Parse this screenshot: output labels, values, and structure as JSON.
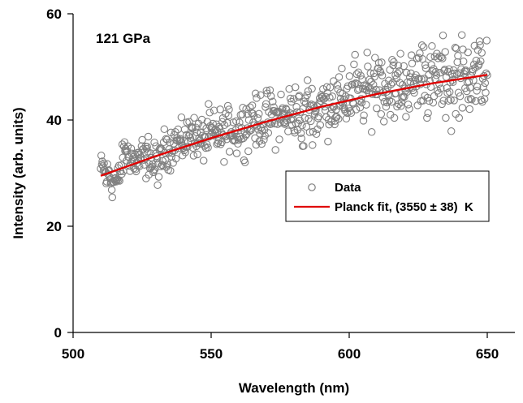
{
  "chart_data": {
    "type": "scatter",
    "annotation": "121 GPa",
    "xlabel": "Wavelength (nm)",
    "ylabel": "Intensity (arb. units)",
    "xlim": [
      500,
      660
    ],
    "ylim": [
      0,
      60
    ],
    "xticks": [
      500,
      550,
      600,
      650
    ],
    "yticks": [
      0,
      20,
      40,
      60
    ],
    "grid": false,
    "legend_position": "center-right",
    "series": [
      {
        "name": "Data",
        "kind": "scatter",
        "marker": "open-circle",
        "color": "#808080",
        "x_range": [
          510,
          650
        ],
        "count": 700,
        "points": [
          [
            510,
            31.6
          ],
          [
            511,
            32.8
          ],
          [
            512,
            28.4
          ],
          [
            513,
            30.1
          ],
          [
            514,
            26.3
          ],
          [
            515,
            27.5
          ],
          [
            516,
            25.2
          ],
          [
            517,
            29.8
          ],
          [
            518,
            33.1
          ],
          [
            519,
            39.2
          ],
          [
            520,
            34.2
          ],
          [
            521,
            36.0
          ],
          [
            522,
            31.5
          ],
          [
            523,
            33.0
          ],
          [
            524,
            32.5
          ],
          [
            525,
            35.1
          ],
          [
            526,
            30.4
          ],
          [
            527,
            34.8
          ],
          [
            528,
            33.2
          ],
          [
            529,
            29.0
          ],
          [
            530,
            32.5
          ],
          [
            531,
            28.2
          ],
          [
            532,
            31.1
          ],
          [
            533,
            34.9
          ],
          [
            534,
            36.3
          ],
          [
            535,
            35.2
          ],
          [
            536,
            37.1
          ],
          [
            537,
            36.4
          ],
          [
            538,
            38.2
          ],
          [
            539,
            35.0
          ],
          [
            540,
            37.5
          ],
          [
            541,
            36.1
          ],
          [
            542,
            39.2
          ],
          [
            543,
            43.5
          ],
          [
            544,
            36.5
          ],
          [
            545,
            38.4
          ],
          [
            546,
            35.3
          ],
          [
            547,
            37.0
          ],
          [
            548,
            36.2
          ],
          [
            549,
            39.5
          ],
          [
            550,
            36.9
          ],
          [
            551,
            38.0
          ],
          [
            552,
            37.5
          ],
          [
            553,
            39.1
          ],
          [
            554,
            36.0
          ],
          [
            555,
            38.3
          ],
          [
            556,
            37.5
          ],
          [
            557,
            40.5
          ],
          [
            558,
            39.4
          ],
          [
            559,
            36.5
          ],
          [
            560,
            38.7
          ],
          [
            561,
            40.1
          ],
          [
            562,
            37.8
          ],
          [
            563,
            41.2
          ],
          [
            564,
            39.0
          ],
          [
            565,
            44.5
          ],
          [
            566,
            40.2
          ],
          [
            567,
            37.5
          ],
          [
            568,
            42.5
          ],
          [
            569,
            39.0
          ],
          [
            570,
            41.5
          ],
          [
            571,
            40.2
          ],
          [
            572,
            43.5
          ],
          [
            573,
            40.3
          ],
          [
            574,
            39.1
          ],
          [
            575,
            42.0
          ],
          [
            576,
            40.8
          ],
          [
            577,
            38.5
          ],
          [
            578,
            43.2
          ],
          [
            579,
            41.0
          ],
          [
            580,
            44.5
          ],
          [
            581,
            41.5
          ],
          [
            582,
            39.5
          ],
          [
            583,
            31.5
          ],
          [
            584,
            42.8
          ],
          [
            585,
            44.0
          ],
          [
            586,
            40.5
          ],
          [
            587,
            43.2
          ],
          [
            588,
            38.5
          ],
          [
            589,
            42.0
          ],
          [
            590,
            45.5
          ],
          [
            591,
            43.0
          ],
          [
            592,
            41.5
          ],
          [
            593,
            44.8
          ],
          [
            594,
            46.5
          ],
          [
            595,
            42.5
          ],
          [
            596,
            44.0
          ],
          [
            597,
            41.2
          ],
          [
            598,
            45.5
          ],
          [
            599,
            43.5
          ],
          [
            600,
            47.0
          ],
          [
            601,
            43.8
          ],
          [
            602,
            50.5
          ],
          [
            603,
            45.0
          ],
          [
            604,
            42.5
          ],
          [
            605,
            46.5
          ],
          [
            606,
            44.2
          ],
          [
            607,
            48.0
          ],
          [
            608,
            45.5
          ],
          [
            609,
            52.5
          ],
          [
            610,
            46.8
          ],
          [
            611,
            56.5
          ],
          [
            612,
            45.0
          ],
          [
            613,
            48.2
          ],
          [
            614,
            44.5
          ],
          [
            615,
            50.0
          ],
          [
            616,
            46.5
          ],
          [
            617,
            43.0
          ],
          [
            618,
            49.5
          ],
          [
            619,
            47.0
          ],
          [
            620,
            45.0
          ],
          [
            621,
            51.0
          ],
          [
            622,
            44.0
          ],
          [
            623,
            48.5
          ],
          [
            624,
            46.0
          ],
          [
            625,
            53.0
          ],
          [
            626,
            47.5
          ],
          [
            627,
            57.0
          ],
          [
            628,
            45.5
          ],
          [
            629,
            50.0
          ],
          [
            630,
            48.0
          ],
          [
            631,
            44.5
          ],
          [
            632,
            52.0
          ],
          [
            633,
            47.0
          ],
          [
            634,
            49.5
          ],
          [
            635,
            46.0
          ],
          [
            636,
            50.5
          ],
          [
            637,
            40.5
          ],
          [
            638,
            48.5
          ],
          [
            639,
            53.5
          ],
          [
            640,
            46.0
          ],
          [
            641,
            50.0
          ],
          [
            642,
            44.0
          ],
          [
            643,
            51.5
          ],
          [
            644,
            47.5
          ],
          [
            645,
            55.0
          ],
          [
            646,
            45.0
          ],
          [
            647,
            49.0
          ],
          [
            648,
            52.0
          ],
          [
            649,
            46.5
          ],
          [
            650,
            50.5
          ]
        ]
      },
      {
        "name": "Planck fit, (3550 ± 38)  K",
        "kind": "line",
        "color": "#e00000",
        "points": [
          [
            510,
            29.5
          ],
          [
            530,
            33.2
          ],
          [
            550,
            36.6
          ],
          [
            570,
            39.7
          ],
          [
            590,
            42.5
          ],
          [
            610,
            44.9
          ],
          [
            630,
            46.9
          ],
          [
            650,
            48.5
          ]
        ]
      }
    ]
  },
  "colors": {
    "marker": "#808080",
    "fit_line": "#e00000",
    "axis": "#000000",
    "background": "#ffffff"
  }
}
